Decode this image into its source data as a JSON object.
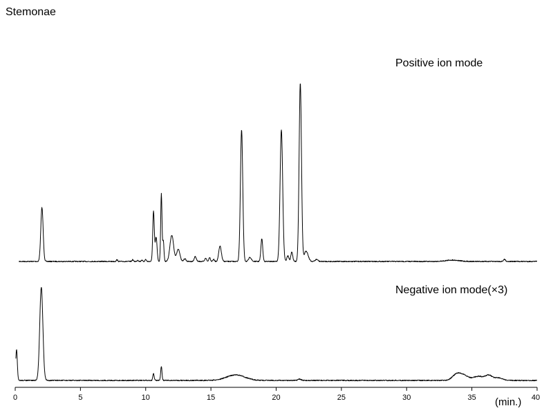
{
  "chart_data": {
    "type": "line",
    "title": "Stemonae",
    "xlabel": "(min.)",
    "xlim": [
      0,
      40
    ],
    "xticks": [
      0,
      5,
      10,
      15,
      20,
      25,
      30,
      35,
      40
    ],
    "tick_labels": [
      "0",
      "5",
      "10",
      "15",
      "20",
      "25",
      "30",
      "35",
      "40"
    ],
    "grid": false,
    "series": [
      {
        "name": "Positive ion mode",
        "start": 0.3,
        "baseline": 0,
        "peaks": [
          [
            2.05,
            78,
            0.09
          ],
          [
            7.8,
            2.5,
            0.05
          ],
          [
            9.0,
            2.5,
            0.05
          ],
          [
            9.4,
            2,
            0.05
          ],
          [
            9.7,
            2,
            0.05
          ],
          [
            10.0,
            3,
            0.05
          ],
          [
            10.6,
            72,
            0.06
          ],
          [
            10.8,
            35,
            0.07
          ],
          [
            11.2,
            98,
            0.05
          ],
          [
            11.35,
            30,
            0.05
          ],
          [
            12.0,
            38,
            0.14
          ],
          [
            12.5,
            18,
            0.12
          ],
          [
            13.0,
            4,
            0.08
          ],
          [
            13.8,
            7,
            0.08
          ],
          [
            14.6,
            5,
            0.06
          ],
          [
            14.9,
            6,
            0.06
          ],
          [
            15.2,
            3,
            0.06
          ],
          [
            15.7,
            22,
            0.1
          ],
          [
            17.35,
            190,
            0.09
          ],
          [
            18.0,
            6,
            0.1
          ],
          [
            18.9,
            33,
            0.07
          ],
          [
            20.4,
            190,
            0.1
          ],
          [
            20.9,
            8,
            0.08
          ],
          [
            21.2,
            14,
            0.07
          ],
          [
            21.85,
            258,
            0.09
          ],
          [
            22.3,
            15,
            0.15
          ],
          [
            23.1,
            3,
            0.1
          ],
          [
            33.5,
            2,
            0.5
          ],
          [
            37.5,
            3,
            0.08
          ]
        ]
      },
      {
        "name": "Negative ion mode(×3)",
        "start": 0.05,
        "baseline": 0,
        "peaks": [
          [
            0.1,
            45,
            0.06
          ],
          [
            2.0,
            135,
            0.12
          ],
          [
            10.6,
            10,
            0.05
          ],
          [
            11.2,
            20,
            0.05
          ],
          [
            16.9,
            8,
            0.7
          ],
          [
            21.8,
            2,
            0.1
          ],
          [
            33.9,
            10,
            0.35
          ],
          [
            34.5,
            5,
            0.3
          ],
          [
            35.5,
            6,
            0.4
          ],
          [
            36.3,
            7,
            0.25
          ],
          [
            37.0,
            4,
            0.3
          ]
        ]
      }
    ]
  }
}
